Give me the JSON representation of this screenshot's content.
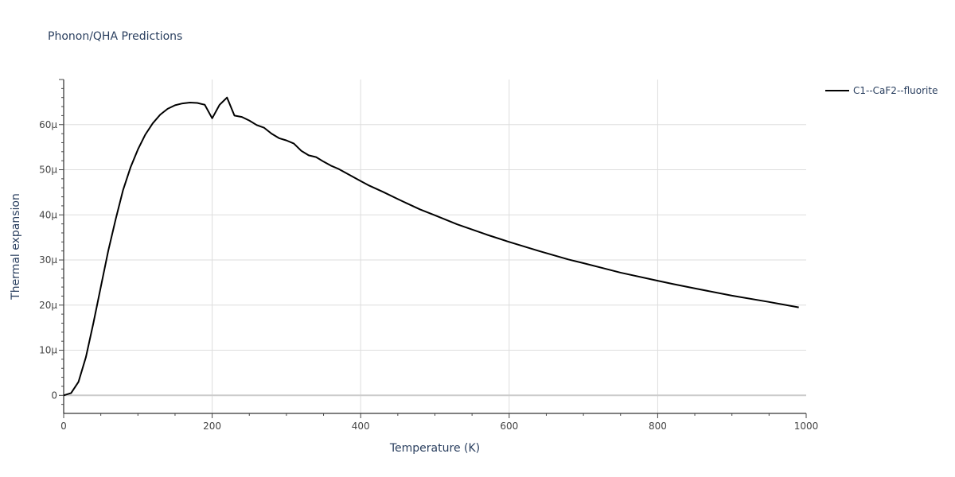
{
  "chart_data": {
    "type": "line",
    "title": "Phonon/QHA Predictions",
    "xlabel": "Temperature (K)",
    "ylabel": "Thermal expansion",
    "xlim": [
      0,
      1000
    ],
    "ylim": [
      -4e-06,
      7e-05
    ],
    "x_ticks": [
      0,
      200,
      400,
      600,
      800,
      1000
    ],
    "x_tick_labels": [
      "0",
      "200",
      "400",
      "600",
      "800",
      "1000"
    ],
    "y_ticks": [
      0,
      1e-05,
      2e-05,
      3e-05,
      4e-05,
      5e-05,
      6e-05
    ],
    "y_tick_labels": [
      "0",
      "10μ",
      "20μ",
      "30μ",
      "40μ",
      "50μ",
      "60μ"
    ],
    "grid": true,
    "legend_position": "top-right",
    "series": [
      {
        "name": "C1--CaF2--fluorite",
        "color": "#000000",
        "x": [
          0,
          10,
          20,
          30,
          40,
          50,
          60,
          70,
          80,
          90,
          100,
          110,
          120,
          130,
          140,
          150,
          160,
          170,
          180,
          190,
          200,
          210,
          220,
          230,
          240,
          250,
          260,
          270,
          280,
          290,
          300,
          310,
          320,
          330,
          340,
          350,
          360,
          370,
          380,
          390,
          400,
          410,
          430,
          450,
          480,
          500,
          530,
          570,
          600,
          640,
          680,
          700,
          750,
          800,
          820,
          850,
          900,
          950,
          990
        ],
        "y": [
          0,
          5e-07,
          3e-06,
          8.5e-06,
          1.6e-05,
          2.4e-05,
          3.2e-05,
          3.9e-05,
          4.55e-05,
          5.05e-05,
          5.45e-05,
          5.78e-05,
          6.03e-05,
          6.22e-05,
          6.35e-05,
          6.43e-05,
          6.47e-05,
          6.49e-05,
          6.48e-05,
          6.44e-05,
          6.14e-05,
          6.44e-05,
          6.6e-05,
          6.2e-05,
          6.17e-05,
          6.09e-05,
          5.99e-05,
          5.93e-05,
          5.8e-05,
          5.7e-05,
          5.65e-05,
          5.58e-05,
          5.42e-05,
          5.32e-05,
          5.28e-05,
          5.18e-05,
          5.09e-05,
          5.02e-05,
          4.93e-05,
          4.84e-05,
          4.75e-05,
          4.66e-05,
          4.51e-05,
          4.35e-05,
          4.12e-05,
          3.99e-05,
          3.79e-05,
          3.56e-05,
          3.4e-05,
          3.2e-05,
          3.01e-05,
          2.93e-05,
          2.72e-05,
          2.54e-05,
          2.47e-05,
          2.37e-05,
          2.21e-05,
          2.07e-05,
          1.95e-05
        ]
      }
    ]
  }
}
